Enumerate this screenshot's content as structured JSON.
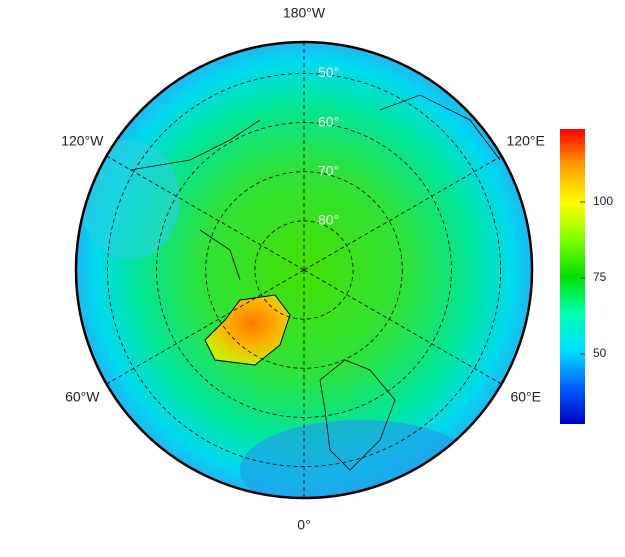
{
  "map_data": {
    "type": "polar-map",
    "latlim": [
      43.6,
      90
    ],
    "longitudes": [
      {
        "value": 180,
        "label": "180°W"
      },
      {
        "value": 120,
        "label": "120°E"
      },
      {
        "value": 60,
        "label": "60°E"
      },
      {
        "value": 0,
        "label": "0°"
      },
      {
        "value": -60,
        "label": "60°W"
      },
      {
        "value": -120,
        "label": "120°W"
      }
    ],
    "latitudes": [
      {
        "value": 50,
        "label": "50°"
      },
      {
        "value": 60,
        "label": "60°"
      },
      {
        "value": 70,
        "label": "70°"
      },
      {
        "value": 80,
        "label": "80°"
      }
    ],
    "colorbar": {
      "clim": [
        27,
        124
      ],
      "ticks": [
        50,
        75,
        100
      ],
      "colormap": [
        "#0000c8",
        "#0060ff",
        "#00e0ff",
        "#00ffb0",
        "#00e000",
        "#80ff00",
        "#ffff00",
        "#ffa000",
        "#ff0000"
      ]
    }
  }
}
